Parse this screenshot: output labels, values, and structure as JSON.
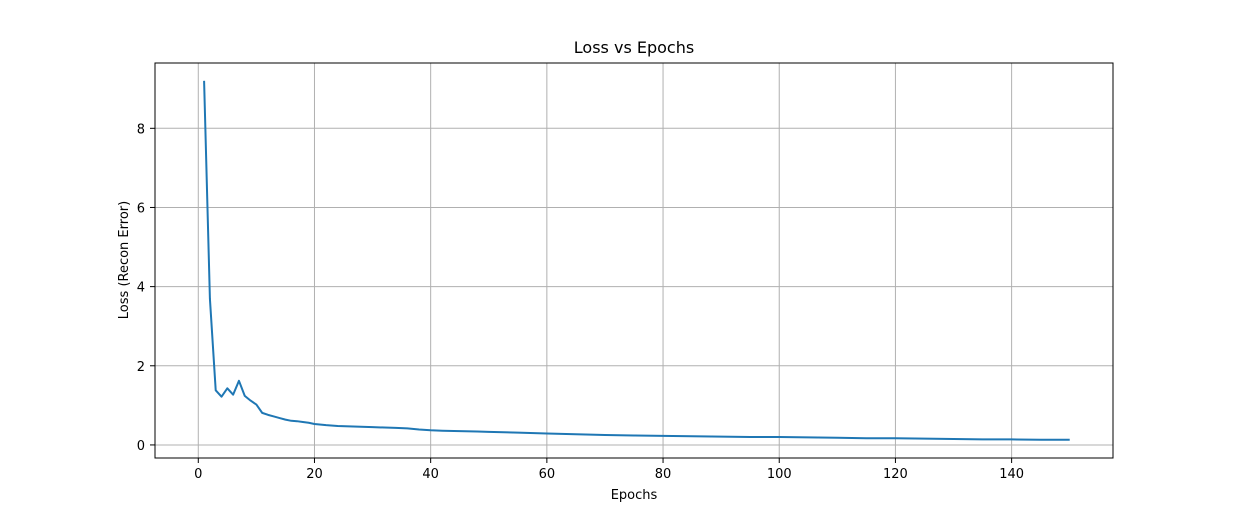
{
  "chart_data": {
    "type": "line",
    "title": "Loss vs Epochs",
    "xlabel": "Epochs",
    "ylabel": "Loss (Recon Error)",
    "xlim": [
      -7.45,
      157.45
    ],
    "ylim": [
      -0.33,
      9.65
    ],
    "xticks": [
      0,
      20,
      40,
      60,
      80,
      100,
      120,
      140
    ],
    "yticks": [
      0,
      2,
      4,
      6,
      8
    ],
    "grid": true,
    "line_color": "#1f77b4",
    "grid_color": "#b0b0b0",
    "series": [
      {
        "x": [
          1,
          2,
          3,
          4,
          5,
          6,
          7,
          8,
          9,
          10,
          11,
          12,
          13,
          14,
          15,
          16,
          17,
          18,
          19,
          20,
          22,
          24,
          26,
          28,
          30,
          32,
          34,
          36,
          38,
          40,
          42,
          45,
          48,
          50,
          55,
          60,
          65,
          70,
          75,
          80,
          85,
          90,
          95,
          100,
          105,
          110,
          115,
          120,
          125,
          130,
          135,
          140,
          145,
          150
        ],
        "y": [
          9.2,
          3.7,
          1.38,
          1.22,
          1.43,
          1.27,
          1.62,
          1.24,
          1.12,
          1.02,
          0.81,
          0.76,
          0.72,
          0.68,
          0.64,
          0.61,
          0.6,
          0.58,
          0.56,
          0.53,
          0.5,
          0.48,
          0.47,
          0.46,
          0.45,
          0.44,
          0.43,
          0.42,
          0.39,
          0.37,
          0.36,
          0.35,
          0.34,
          0.33,
          0.31,
          0.29,
          0.27,
          0.25,
          0.24,
          0.23,
          0.22,
          0.21,
          0.2,
          0.2,
          0.19,
          0.18,
          0.17,
          0.17,
          0.16,
          0.15,
          0.14,
          0.14,
          0.13,
          0.13
        ]
      }
    ]
  }
}
